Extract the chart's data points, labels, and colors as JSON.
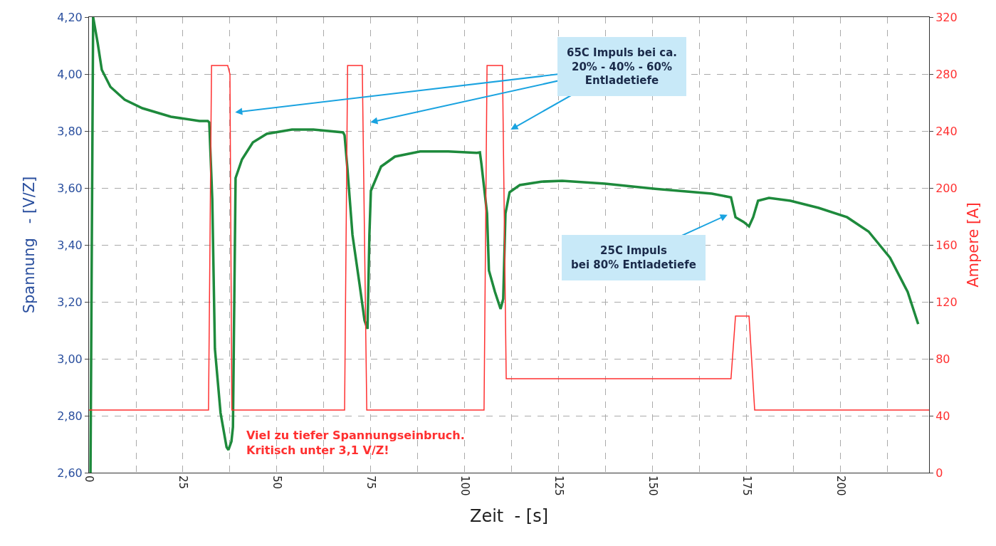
{
  "chart_data": {
    "type": "line",
    "xlabel": "Zeit  - [s]",
    "ylabel": "Spannung   - [V/Z]",
    "y2label": "Ampere [A]",
    "xlim": [
      0,
      223.5
    ],
    "ylim": [
      2.6,
      4.2
    ],
    "y2lim": [
      0,
      320
    ],
    "xticks": [
      0,
      {
        "value": 12.5,
        "label": null
      },
      25,
      {
        "value": 37.5,
        "label": null
      },
      50,
      {
        "value": 62.5,
        "label": null
      },
      75,
      {
        "value": 87.5,
        "label": null
      },
      100,
      {
        "value": 112.5,
        "label": null
      },
      125,
      {
        "value": 137.5,
        "label": null
      },
      150,
      {
        "value": 162.5,
        "label": null
      },
      175,
      {
        "value": 187.5,
        "label": null
      },
      200,
      {
        "value": 212.5,
        "label": null
      }
    ],
    "yticks": [
      {
        "value": 2.6,
        "label": "2,60"
      },
      {
        "value": 2.8,
        "label": "2,80"
      },
      {
        "value": 3.0,
        "label": "3,00"
      },
      {
        "value": 3.2,
        "label": "3,20"
      },
      {
        "value": 3.4,
        "label": "3,40"
      },
      {
        "value": 3.6,
        "label": "3,60"
      },
      {
        "value": 3.8,
        "label": "3,80"
      },
      {
        "value": 4.0,
        "label": "4,00"
      },
      {
        "value": 4.2,
        "label": "4,20"
      }
    ],
    "y2ticks": [
      0,
      40,
      80,
      120,
      160,
      200,
      240,
      280,
      320
    ],
    "grid": true,
    "marker": "none",
    "line_style": "solid",
    "series": [
      {
        "color": "#1e8a3c",
        "x": [
          0.4,
          1.1,
          2.3,
          3.4,
          5.7,
          9.5,
          14.2,
          21.8,
          29.4,
          31.6,
          32.0,
          32.8,
          33.5,
          35.0,
          36.6,
          37.1,
          37.9,
          38.3,
          39.0,
          40.7,
          43.6,
          47.3,
          54.0,
          59.7,
          67.6,
          68.0,
          68.8,
          70.1,
          72.0,
          73.3,
          74.1,
          74.6,
          75.0,
          77.7,
          81.4,
          88.1,
          95.6,
          103.2,
          104.0,
          104.4,
          105.9,
          106.4,
          108.0,
          109.5,
          110.2,
          110.8,
          111.9,
          114.6,
          120.3,
          125.9,
          137.3,
          150.6,
          165.7,
          170.8,
          172.0,
          174.2,
          175.6,
          176.7,
          178.0,
          180.9,
          186.6,
          194.1,
          201.7,
          207.4,
          213.1,
          217.8,
          220.6
        ],
        "values": [
          2.6,
          4.2,
          4.11,
          4.015,
          3.955,
          3.91,
          3.88,
          3.85,
          3.835,
          3.835,
          3.83,
          3.56,
          3.035,
          2.81,
          2.69,
          2.68,
          2.71,
          2.76,
          3.635,
          3.7,
          3.76,
          3.79,
          3.805,
          3.805,
          3.795,
          3.785,
          3.66,
          3.435,
          3.26,
          3.135,
          3.105,
          3.435,
          3.59,
          3.675,
          3.71,
          3.728,
          3.728,
          3.723,
          3.725,
          3.685,
          3.51,
          3.31,
          3.235,
          3.175,
          3.21,
          3.51,
          3.585,
          3.61,
          3.622,
          3.625,
          3.615,
          3.597,
          3.58,
          3.567,
          3.497,
          3.48,
          3.465,
          3.497,
          3.555,
          3.565,
          3.555,
          3.53,
          3.497,
          3.447,
          3.355,
          3.235,
          3.122
        ]
      },
      {
        "color": "#ff3030",
        "axis": "y2",
        "x": [
          0,
          31.8,
          32.6,
          36.9,
          37.5,
          38.0,
          68.0,
          68.8,
          72.7,
          73.9,
          105.1,
          105.9,
          110.0,
          111.0,
          170.8,
          172.0,
          175.6,
          177.1,
          223.5
        ],
        "values": [
          44,
          44,
          286,
          286,
          280,
          44,
          44,
          286,
          286,
          44,
          44,
          286,
          286,
          66,
          66,
          110,
          110,
          44,
          44
        ]
      }
    ],
    "annotations": [
      "65C Impuls bei ca.\n20% - 40% - 60%\nEntladetiefe",
      "25C Impuls\nbei 80% Entladetiefe",
      "Viel zu tiefer Spannungseinbruch.\nKritisch unter 3,1 V/Z!"
    ]
  }
}
